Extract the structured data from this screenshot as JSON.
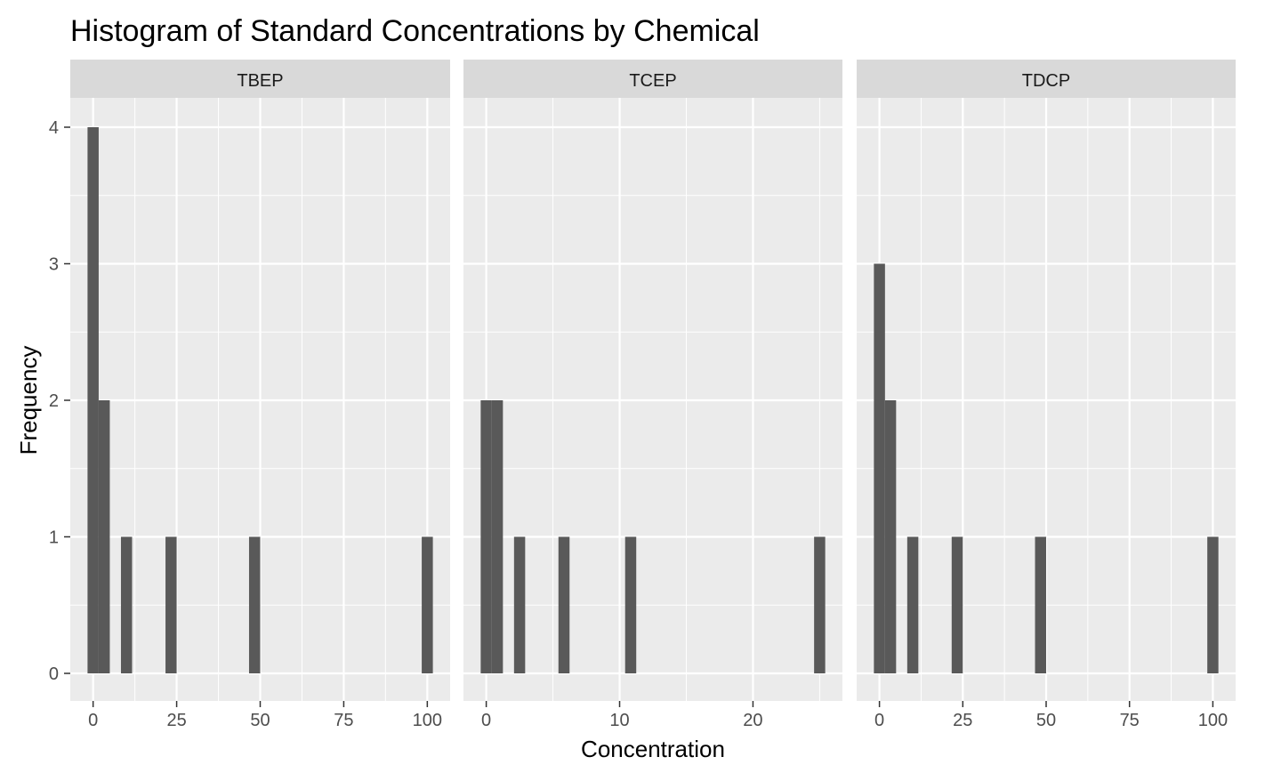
{
  "chart_data": {
    "type": "bar",
    "title": "Histogram of Standard Concentrations by Chemical",
    "xlabel": "Concentration",
    "ylabel": "Frequency",
    "grid": true,
    "legend": "none",
    "colors": {
      "bar": "#595959",
      "panel": "#ebebeb",
      "strip": "#d9d9d9",
      "grid": "#ffffff"
    },
    "ylim": [
      0,
      4
    ],
    "yticks": [
      0,
      1,
      2,
      3,
      4
    ],
    "facets": [
      {
        "name": "TBEP",
        "xlim": [
          0,
          100
        ],
        "xticks": [
          0,
          25,
          50,
          75,
          100
        ],
        "bin_width": 3.33,
        "bins": [
          {
            "x": 0,
            "count": 4
          },
          {
            "x": 3.33,
            "count": 2
          },
          {
            "x": 10,
            "count": 1
          },
          {
            "x": 23.33,
            "count": 1
          },
          {
            "x": 48.33,
            "count": 1
          },
          {
            "x": 100,
            "count": 1
          }
        ]
      },
      {
        "name": "TCEP",
        "xlim": [
          0,
          25
        ],
        "xticks": [
          0,
          10,
          20
        ],
        "bin_width": 0.833,
        "bins": [
          {
            "x": 0,
            "count": 2
          },
          {
            "x": 0.833,
            "count": 2
          },
          {
            "x": 2.5,
            "count": 1
          },
          {
            "x": 5.83,
            "count": 1
          },
          {
            "x": 10.83,
            "count": 1
          },
          {
            "x": 25,
            "count": 1
          }
        ]
      },
      {
        "name": "TDCP",
        "xlim": [
          0,
          100
        ],
        "xticks": [
          0,
          25,
          50,
          75,
          100
        ],
        "bin_width": 3.33,
        "bins": [
          {
            "x": 0,
            "count": 3
          },
          {
            "x": 3.33,
            "count": 2
          },
          {
            "x": 10,
            "count": 1
          },
          {
            "x": 23.33,
            "count": 1
          },
          {
            "x": 48.33,
            "count": 1
          },
          {
            "x": 100,
            "count": 1
          }
        ]
      }
    ]
  }
}
